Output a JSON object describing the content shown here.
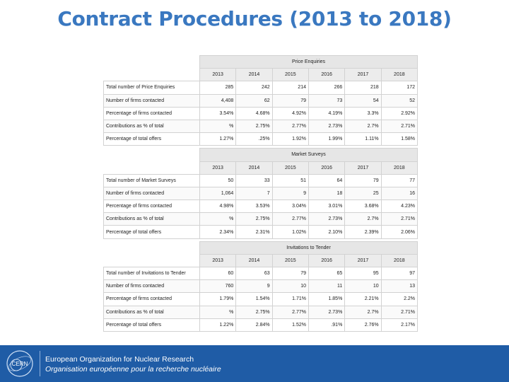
{
  "title": "Contract Procedures (2013 to 2018)",
  "years": [
    "2013",
    "2014",
    "2015",
    "2016",
    "2017",
    "2018"
  ],
  "sections": [
    {
      "name": "Price Enquiries",
      "rows": [
        {
          "label": "Total number of Price Enquiries",
          "values": [
            "285",
            "242",
            "214",
            "266",
            "218",
            "172"
          ]
        },
        {
          "label": "Number of firms contacted",
          "values": [
            "4,408",
            "62",
            "79",
            "73",
            "54",
            "52"
          ]
        },
        {
          "label": "Percentage of firms contacted",
          "values": [
            "3.54%",
            "4.68%",
            "4.92%",
            "4.19%",
            "3.3%",
            "2.92%"
          ]
        },
        {
          "label": "Contributions as % of total",
          "values": [
            "%",
            "2.75%",
            "2.77%",
            "2.73%",
            "2.7%",
            "2.71%"
          ]
        },
        {
          "label": "Percentage of total offers",
          "values": [
            "1.27%",
            ".25%",
            "1.92%",
            "1.99%",
            "1.11%",
            "1.58%"
          ]
        }
      ]
    },
    {
      "name": "Market Surveys",
      "rows": [
        {
          "label": "Total number of Market Surveys",
          "values": [
            "50",
            "33",
            "51",
            "64",
            "79",
            "77"
          ]
        },
        {
          "label": "Number of firms contacted",
          "values": [
            "1,064",
            "7",
            "9",
            "18",
            "25",
            "16"
          ]
        },
        {
          "label": "Percentage of firms contacted",
          "values": [
            "4.98%",
            "3.53%",
            "3.04%",
            "3.01%",
            "3.68%",
            "4.23%"
          ]
        },
        {
          "label": "Contributions as % of total",
          "values": [
            "%",
            "2.75%",
            "2.77%",
            "2.73%",
            "2.7%",
            "2.71%"
          ]
        },
        {
          "label": "Percentage of total offers",
          "values": [
            "2.34%",
            "2.31%",
            "1.02%",
            "2.10%",
            "2.39%",
            "2.06%"
          ]
        }
      ]
    },
    {
      "name": "Invitations to Tender",
      "rows": [
        {
          "label": "Total number of Invitations to Tender",
          "values": [
            "60",
            "63",
            "79",
            "65",
            "95",
            "97"
          ]
        },
        {
          "label": "Number of firms contacted",
          "values": [
            "760",
            "9",
            "10",
            "11",
            "10",
            "13"
          ]
        },
        {
          "label": "Percentage of firms contacted",
          "values": [
            "1.79%",
            "1.54%",
            "1.71%",
            "1.85%",
            "2.21%",
            "2.2%"
          ]
        },
        {
          "label": "Contributions as % of total",
          "values": [
            "%",
            "2.75%",
            "2.77%",
            "2.73%",
            "2.7%",
            "2.71%"
          ]
        },
        {
          "label": "Percentage of total offers",
          "values": [
            "1.22%",
            "2.84%",
            "1.52%",
            ".91%",
            "2.76%",
            "2.17%"
          ]
        }
      ]
    }
  ],
  "footer": {
    "logo_text": "CERN",
    "org_en": "European Organization for Nuclear Research",
    "org_fr": "Organisation européenne pour la recherche nucléaire"
  }
}
